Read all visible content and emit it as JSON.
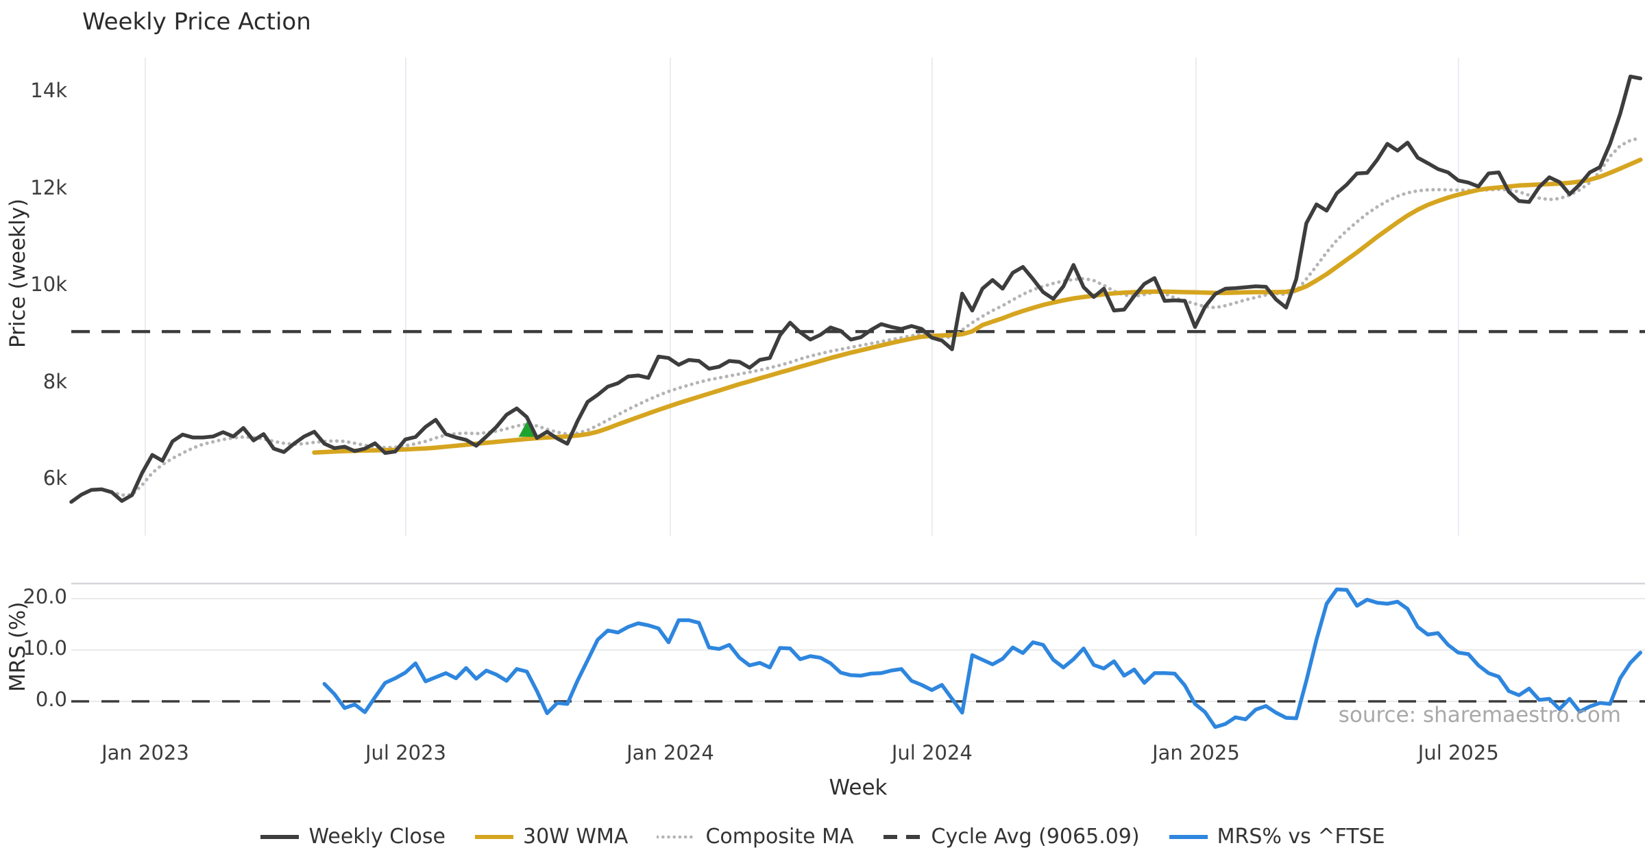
{
  "title": "Weekly Price Action",
  "source": "source: sharemaestro.com",
  "x_axis": {
    "label": "Week",
    "tick_labels": [
      "Jan 2023",
      "Jul 2023",
      "Jan 2024",
      "Jul 2024",
      "Jan 2025",
      "Jul 2025"
    ],
    "tick_weeks": [
      7.31,
      33.04,
      59.17,
      85.03,
      111.1,
      137.02
    ]
  },
  "price_panel": {
    "ylabel": "Price (weekly)",
    "tick_labels": [
      "14k",
      "12k",
      "10k",
      "8k",
      "6k"
    ],
    "tick_values": [
      14000,
      12000,
      10000,
      8000,
      6000
    ]
  },
  "mrs_panel": {
    "ylabel": "MRS (%)",
    "tick_labels": [
      "20.0",
      "10.0",
      "0.0"
    ],
    "tick_values": [
      20,
      10,
      0
    ]
  },
  "legend": [
    {
      "label": "Weekly Close",
      "color": "#3d3d3d",
      "style": "solid"
    },
    {
      "label": "30W WMA",
      "color": "#d6a520",
      "style": "solid"
    },
    {
      "label": "Composite MA",
      "color": "#b4b4b4",
      "style": "dotted"
    },
    {
      "label": "Cycle Avg (9065.09)",
      "color": "#3d3d3d",
      "style": "dashed"
    },
    {
      "label": "MRS% vs ^FTSE",
      "color": "#2e86de",
      "style": "solid"
    }
  ],
  "colors": {
    "close": "#3d3d3d",
    "wma": "#d6a520",
    "composite": "#b4b4b4",
    "cycle_dash": "#3c3c3c",
    "mrs": "#2e86de",
    "marker_green": "#1ea32e",
    "grid_vertical": "#e9ecf2",
    "grid_horizontal": "#eaeaea",
    "panel_border": "#d6d6da",
    "tick_text": "#3c3c3c"
  },
  "chart_data": {
    "type": "line",
    "title": "Weekly Price Action",
    "x_unit": "week_index_from_2022-11-14",
    "xlabel": "Week",
    "x_tick_labels": [
      "Jan 2023",
      "Jul 2023",
      "Jan 2024",
      "Jul 2024",
      "Jan 2025",
      "Jul 2025"
    ],
    "legend_position": "bottom-center",
    "panels": [
      {
        "name": "price",
        "ylabel": "Price (weekly)",
        "ylim": [
          5150,
          14750
        ],
        "yticks": [
          6000,
          8000,
          10000,
          12000,
          14000
        ],
        "grid": "vertical-only",
        "cycle_avg": 9065.09,
        "marker": {
          "type": "triangle-up",
          "color": "#1ea32e",
          "week": 45,
          "price": 7050
        },
        "series": [
          {
            "name": "Weekly Close",
            "color": "#3d3d3d",
            "start_week": 0,
            "values": [
              5550,
              5700,
              5800,
              5810,
              5750,
              5570,
              5690,
              6150,
              6520,
              6400,
              6800,
              6940,
              6880,
              6880,
              6900,
              6990,
              6900,
              7075,
              6820,
              6950,
              6650,
              6580,
              6750,
              6900,
              7000,
              6750,
              6660,
              6690,
              6600,
              6650,
              6760,
              6560,
              6590,
              6840,
              6890,
              7100,
              7245,
              6950,
              6880,
              6830,
              6710,
              6900,
              7100,
              7350,
              7480,
              7300,
              6870,
              7000,
              6860,
              6750,
              7215,
              7615,
              7760,
              7930,
              8000,
              8140,
              8160,
              8110,
              8550,
              8520,
              8380,
              8480,
              8460,
              8300,
              8340,
              8460,
              8440,
              8320,
              8480,
              8520,
              8990,
              9250,
              9050,
              8900,
              9000,
              9150,
              9080,
              8900,
              8950,
              9100,
              9220,
              9160,
              9120,
              9180,
              9120,
              8940,
              8880,
              8700,
              9850,
              9500,
              9950,
              10130,
              9950,
              10280,
              10400,
              10150,
              9880,
              9740,
              10000,
              10440,
              9980,
              9780,
              9950,
              9500,
              9520,
              9800,
              10050,
              10170,
              9700,
              9710,
              9700,
              9160,
              9580,
              9840,
              9950,
              9960,
              9980,
              10000,
              9990,
              9730,
              9560,
              10150,
              11300,
              11690,
              11560,
              11920,
              12100,
              12330,
              12340,
              12610,
              12940,
              12800,
              12965,
              12655,
              12540,
              12420,
              12350,
              12185,
              12140,
              12060,
              12330,
              12350,
              11950,
              11760,
              11740,
              12050,
              12250,
              12150,
              11900,
              12100,
              12350,
              12460,
              12940,
              13560,
              14330,
              14290
            ]
          },
          {
            "name": "30W WMA",
            "color": "#d6a520",
            "start_week": 24,
            "values": [
              6570,
              6580,
              6590,
              6600,
              6605,
              6610,
              6615,
              6620,
              6625,
              6635,
              6645,
              6655,
              6670,
              6690,
              6710,
              6730,
              6750,
              6770,
              6790,
              6810,
              6830,
              6850,
              6865,
              6880,
              6890,
              6900,
              6920,
              6950,
              7000,
              7070,
              7150,
              7225,
              7300,
              7375,
              7450,
              7520,
              7590,
              7655,
              7720,
              7785,
              7850,
              7915,
              7980,
              8040,
              8100,
              8160,
              8220,
              8280,
              8340,
              8400,
              8460,
              8520,
              8575,
              8630,
              8680,
              8730,
              8780,
              8830,
              8875,
              8920,
              8960,
              8975,
              8985,
              8995,
              9010,
              9070,
              9200,
              9270,
              9340,
              9420,
              9490,
              9555,
              9615,
              9665,
              9710,
              9750,
              9780,
              9805,
              9835,
              9855,
              9870,
              9880,
              9885,
              9890,
              9890,
              9885,
              9880,
              9875,
              9870,
              9865,
              9865,
              9870,
              9875,
              9880,
              9880,
              9880,
              9885,
              9920,
              10000,
              10120,
              10250,
              10400,
              10550,
              10700,
              10860,
              11020,
              11170,
              11320,
              11460,
              11580,
              11680,
              11760,
              11830,
              11890,
              11940,
              11990,
              12020,
              12040,
              12060,
              12080,
              12090,
              12100,
              12110,
              12120,
              12135,
              12160,
              12200,
              12260,
              12340,
              12430,
              12520,
              12610
            ]
          },
          {
            "name": "Composite MA",
            "color": "#b4b4b4",
            "start_week": 4,
            "values": [
              5760,
              5690,
              5700,
              5900,
              6150,
              6320,
              6450,
              6560,
              6660,
              6740,
              6790,
              6840,
              6870,
              6890,
              6880,
              6850,
              6800,
              6760,
              6740,
              6750,
              6780,
              6800,
              6810,
              6800,
              6760,
              6720,
              6690,
              6670,
              6680,
              6710,
              6750,
              6800,
              6870,
              6930,
              6960,
              6970,
              6960,
              6980,
              7010,
              7060,
              7120,
              7150,
              7120,
              7050,
              6990,
              6950,
              6970,
              7030,
              7130,
              7240,
              7350,
              7460,
              7560,
              7660,
              7750,
              7830,
              7900,
              7960,
              8020,
              8070,
              8110,
              8150,
              8190,
              8230,
              8270,
              8320,
              8370,
              8430,
              8500,
              8560,
              8610,
              8660,
              8700,
              8740,
              8780,
              8820,
              8860,
              8900,
              8940,
              8980,
              9010,
              9010,
              8960,
              8940,
              9100,
              9250,
              9380,
              9500,
              9600,
              9720,
              9835,
              9930,
              10000,
              10060,
              10110,
              10140,
              10160,
              10120,
              10020,
              9900,
              9820,
              9790,
              9830,
              9880,
              9850,
              9760,
              9700,
              9640,
              9580,
              9560,
              9600,
              9660,
              9720,
              9770,
              9820,
              9850,
              9830,
              9900,
              10150,
              10420,
              10700,
              10950,
              11150,
              11330,
              11500,
              11640,
              11760,
              11860,
              11930,
              11970,
              11990,
              11995,
              11990,
              11985,
              11980,
              11985,
              11990,
              12000,
              11990,
              11950,
              11880,
              11820,
              11790,
              11810,
              11880,
              11990,
              12140,
              12370,
              12680,
              12900,
              13010,
              13060
            ]
          }
        ]
      },
      {
        "name": "mrs",
        "ylabel": "MRS (%)",
        "ylim": [
          -7.5,
          23
        ],
        "yticks": [
          0,
          10,
          20
        ],
        "grid": "horizontal-only",
        "zero_line": 0,
        "series": [
          {
            "name": "MRS% vs ^FTSE",
            "color": "#2e86de",
            "start_week": 25,
            "values": [
              3.4,
              1.4,
              -1.3,
              -0.6,
              -2.1,
              0.8,
              3.6,
              4.5,
              5.6,
              7.4,
              3.9,
              4.7,
              5.5,
              4.5,
              6.5,
              4.4,
              6.0,
              5.2,
              4.0,
              6.3,
              5.8,
              2.0,
              -2.3,
              -0.3,
              -0.5,
              4.0,
              8.0,
              12.0,
              13.8,
              13.4,
              14.5,
              15.2,
              14.8,
              14.2,
              11.5,
              15.8,
              15.8,
              15.3,
              10.5,
              10.2,
              11.0,
              8.5,
              7.0,
              7.5,
              6.6,
              10.4,
              10.3,
              8.2,
              8.8,
              8.5,
              7.4,
              5.6,
              5.1,
              5.0,
              5.4,
              5.5,
              6.0,
              6.3,
              4.0,
              3.2,
              2.2,
              3.2,
              0.5,
              -2.2,
              9.0,
              8.1,
              7.2,
              8.3,
              10.5,
              9.4,
              11.5,
              11.0,
              8.1,
              6.6,
              8.2,
              10.3,
              7.1,
              6.4,
              7.8,
              5.0,
              6.2,
              3.6,
              5.5,
              5.5,
              5.4,
              3.1,
              -0.5,
              -2.1,
              -5.0,
              -4.4,
              -3.1,
              -3.5,
              -1.6,
              -0.9,
              -2.2,
              -3.2,
              -3.3,
              4.0,
              12.0,
              19.0,
              21.8,
              21.7,
              18.6,
              19.8,
              19.2,
              19.0,
              19.4,
              18.0,
              14.5,
              13.0,
              13.3,
              11.0,
              9.5,
              9.2,
              7.0,
              5.5,
              4.8,
              2.0,
              1.2,
              2.5,
              0.3,
              0.5,
              -1.5,
              0.5,
              -2.0,
              -1.0,
              -0.3,
              -0.5,
              4.5,
              7.5,
              9.5
            ]
          }
        ]
      }
    ]
  }
}
